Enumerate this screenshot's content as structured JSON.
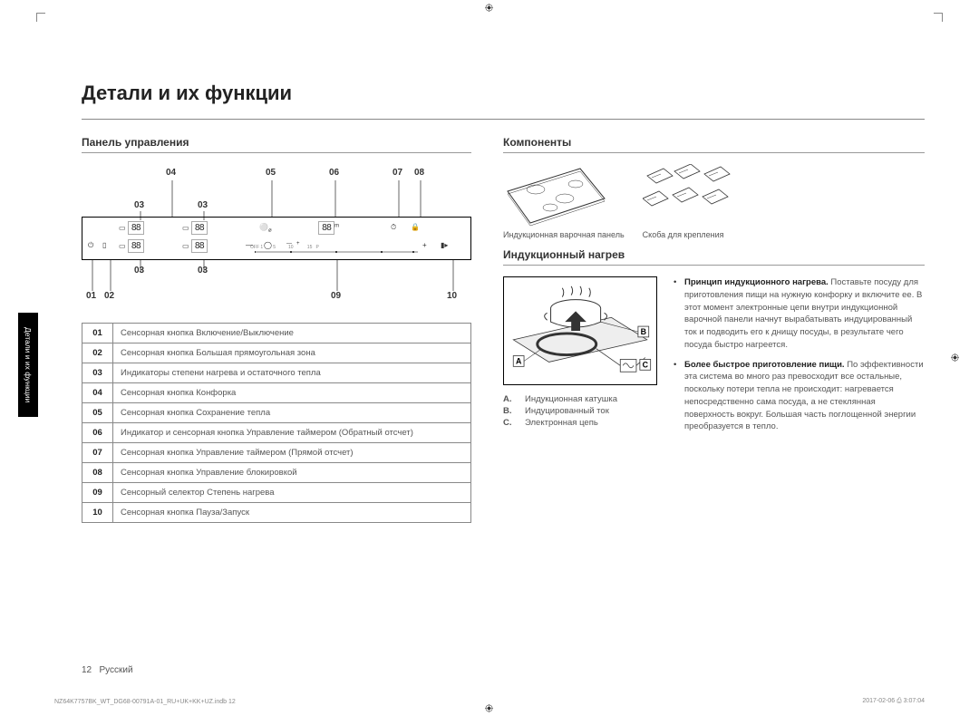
{
  "title": "Детали и их функции",
  "sideTab": "Детали и их функции",
  "controlPanel": {
    "heading": "Панель управления",
    "callouts": {
      "top": [
        "04",
        "05",
        "06",
        "07",
        "08"
      ],
      "mid": [
        "03",
        "03"
      ],
      "bot03": [
        "03",
        "03"
      ],
      "bottom": [
        "01",
        "02",
        "09",
        "10"
      ]
    },
    "table": [
      {
        "n": "01",
        "t": "Сенсорная кнопка Включение/Выключение"
      },
      {
        "n": "02",
        "t": "Сенсорная кнопка Большая прямоугольная зона"
      },
      {
        "n": "03",
        "t": "Индикаторы степени нагрева и остаточного тепла"
      },
      {
        "n": "04",
        "t": "Сенсорная кнопка Конфорка"
      },
      {
        "n": "05",
        "t": "Сенсорная кнопка Сохранение тепла"
      },
      {
        "n": "06",
        "t": "Индикатор и сенсорная кнопка Управление таймером (Обратный отсчет)"
      },
      {
        "n": "07",
        "t": "Сенсорная кнопка Управление таймером (Прямой отсчет)"
      },
      {
        "n": "08",
        "t": "Сенсорная кнопка Управление блокировкой"
      },
      {
        "n": "09",
        "t": "Сенсорный селектор Степень нагрева"
      },
      {
        "n": "10",
        "t": "Сенсорная кнопка Пауза/Запуск"
      }
    ]
  },
  "components": {
    "heading": "Компоненты",
    "item1": "Индукционная варочная панель",
    "item2": "Скоба для крепления"
  },
  "induction": {
    "heading": "Индукционный нагрев",
    "labels": {
      "A": "A",
      "B": "B",
      "C": "C"
    },
    "legend": [
      {
        "k": "A.",
        "v": "Индукционная катушка"
      },
      {
        "k": "B.",
        "v": "Индуцированный ток"
      },
      {
        "k": "C.",
        "v": "Электронная цепь"
      }
    ],
    "bullets": [
      {
        "bold": "Принцип индукционного нагрева.",
        "text": " Поставьте посуду для приготовления пищи на нужную конфорку и включите ее. В этот момент электронные цепи внутри индукционной варочной панели начнут вырабатывать индуцированный ток и подводить его к днищу посуды, в результате чего посуда быстро нагреется."
      },
      {
        "bold": "Более быстрое приготовление пищи.",
        "text": " По эффективности эта система во много раз превосходит все остальные, поскольку потери тепла не происходит: нагревается непосредственно сама посуда, а не стеклянная поверхность вокруг. Большая часть поглощенной энергии преобразуется в тепло."
      }
    ]
  },
  "footer": {
    "page": "12",
    "lang": "Русский"
  },
  "meta": {
    "left": "NZ64K7757BK_WT_DG68-00791A-01_RU+UK+KK+UZ.indb   12",
    "right": "2017-02-06   ⎙ 3:07:04"
  }
}
